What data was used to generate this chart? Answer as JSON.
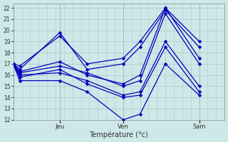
{
  "title": "",
  "xlabel": "Température (°c)",
  "ylabel": "",
  "bg_color": "#cde8e8",
  "grid_color": "#b0c8c8",
  "line_color": "#0000bb",
  "marker": "D",
  "xlim": [
    0,
    100
  ],
  "ylim": [
    12,
    22.4
  ],
  "yticks": [
    12,
    13,
    14,
    15,
    16,
    17,
    18,
    19,
    20,
    21,
    22
  ],
  "day_positions": [
    22,
    52,
    88
  ],
  "day_labels": [
    "Jeu",
    "Ven",
    "Sam"
  ],
  "series": [
    {
      "x": [
        0,
        3,
        22,
        35,
        52,
        60,
        72,
        88
      ],
      "y": [
        17,
        16.8,
        19.5,
        17.0,
        17.5,
        19.0,
        22.0,
        17.5
      ]
    },
    {
      "x": [
        0,
        3,
        22,
        35,
        52,
        60,
        72,
        88
      ],
      "y": [
        17,
        16.5,
        19.8,
        16.5,
        17.0,
        18.5,
        21.8,
        18.5
      ]
    },
    {
      "x": [
        0,
        3,
        22,
        35,
        52,
        60,
        72,
        88
      ],
      "y": [
        17,
        16.3,
        17.2,
        16.0,
        15.2,
        16.0,
        22.0,
        19.0
      ]
    },
    {
      "x": [
        0,
        3,
        22,
        35,
        52,
        60,
        72,
        88
      ],
      "y": [
        17,
        16.2,
        16.8,
        16.2,
        15.0,
        15.5,
        21.5,
        17.0
      ]
    },
    {
      "x": [
        0,
        3,
        22,
        35,
        52,
        60,
        72,
        88
      ],
      "y": [
        17,
        16.0,
        16.2,
        15.5,
        14.2,
        14.5,
        19.0,
        15.0
      ]
    },
    {
      "x": [
        0,
        3,
        22,
        35,
        52,
        60,
        72,
        88
      ],
      "y": [
        17,
        15.8,
        16.5,
        15.2,
        14.0,
        14.2,
        18.5,
        14.5
      ]
    },
    {
      "x": [
        0,
        3,
        22,
        35,
        52,
        60,
        72,
        88
      ],
      "y": [
        17,
        15.5,
        15.5,
        14.5,
        12.0,
        12.5,
        17.0,
        14.2
      ]
    }
  ]
}
